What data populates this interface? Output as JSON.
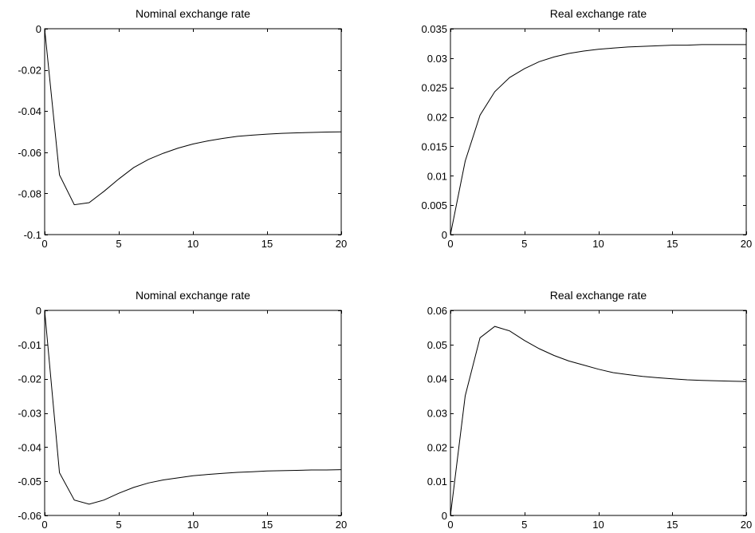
{
  "chart_data": [
    {
      "type": "line",
      "title": "Nominal exchange rate",
      "xlabel": "",
      "ylabel": "",
      "xlim": [
        0,
        20
      ],
      "ylim": [
        -0.1,
        0
      ],
      "grid": false,
      "xticks": [
        0,
        5,
        10,
        15,
        20
      ],
      "xtick_labels": [
        "0",
        "5",
        "10",
        "15",
        "20"
      ],
      "yticks": [
        -0.1,
        -0.08,
        -0.06,
        -0.04,
        -0.02,
        0
      ],
      "ytick_labels": [
        "-0.1",
        "-0.08",
        "-0.06",
        "-0.04",
        "-0.02",
        "0"
      ],
      "series": [
        {
          "x": [
            0,
            1,
            2,
            3,
            4,
            5,
            6,
            7,
            8,
            9,
            10,
            11,
            12,
            13,
            14,
            15,
            16,
            17,
            18,
            19,
            20
          ],
          "values": [
            0,
            -0.071,
            -0.0855,
            -0.0845,
            -0.079,
            -0.073,
            -0.0675,
            -0.0635,
            -0.0605,
            -0.058,
            -0.056,
            -0.0545,
            -0.0533,
            -0.0523,
            -0.0517,
            -0.0512,
            -0.0508,
            -0.0506,
            -0.0504,
            -0.0502,
            -0.0501
          ]
        }
      ]
    },
    {
      "type": "line",
      "title": "Real exchange rate",
      "xlabel": "",
      "ylabel": "",
      "xlim": [
        0,
        20
      ],
      "ylim": [
        0,
        0.035
      ],
      "grid": false,
      "xticks": [
        0,
        5,
        10,
        15,
        20
      ],
      "xtick_labels": [
        "0",
        "5",
        "10",
        "15",
        "20"
      ],
      "yticks": [
        0,
        0.005,
        0.01,
        0.015,
        0.02,
        0.025,
        0.03,
        0.035
      ],
      "ytick_labels": [
        "0",
        "0.005",
        "0.01",
        "0.015",
        "0.02",
        "0.025",
        "0.03",
        "0.035"
      ],
      "series": [
        {
          "x": [
            0,
            1,
            2,
            3,
            4,
            5,
            6,
            7,
            8,
            9,
            10,
            11,
            12,
            13,
            14,
            15,
            16,
            17,
            18,
            19,
            20
          ],
          "values": [
            0,
            0.0125,
            0.0203,
            0.0243,
            0.0267,
            0.0282,
            0.0294,
            0.0302,
            0.0308,
            0.0312,
            0.0315,
            0.0317,
            0.0319,
            0.032,
            0.0321,
            0.0322,
            0.0322,
            0.0323,
            0.0323,
            0.0323,
            0.0323
          ]
        }
      ]
    },
    {
      "type": "line",
      "title": "Nominal exchange rate",
      "xlabel": "",
      "ylabel": "",
      "xlim": [
        0,
        20
      ],
      "ylim": [
        -0.06,
        0
      ],
      "grid": false,
      "xticks": [
        0,
        5,
        10,
        15,
        20
      ],
      "xtick_labels": [
        "0",
        "5",
        "10",
        "15",
        "20"
      ],
      "yticks": [
        -0.06,
        -0.05,
        -0.04,
        -0.03,
        -0.02,
        -0.01,
        0
      ],
      "ytick_labels": [
        "-0.06",
        "-0.05",
        "-0.04",
        "-0.03",
        "-0.02",
        "-0.01",
        "0"
      ],
      "series": [
        {
          "x": [
            0,
            1,
            2,
            3,
            4,
            5,
            6,
            7,
            8,
            9,
            10,
            11,
            12,
            13,
            14,
            15,
            16,
            17,
            18,
            19,
            20
          ],
          "values": [
            0,
            -0.0475,
            -0.0555,
            -0.0567,
            -0.0555,
            -0.0535,
            -0.0518,
            -0.0505,
            -0.0496,
            -0.049,
            -0.0484,
            -0.048,
            -0.0477,
            -0.0474,
            -0.0472,
            -0.047,
            -0.0469,
            -0.0468,
            -0.0467,
            -0.0467,
            -0.0466
          ]
        }
      ]
    },
    {
      "type": "line",
      "title": "Real exchange rate",
      "xlabel": "",
      "ylabel": "",
      "xlim": [
        0,
        20
      ],
      "ylim": [
        0,
        0.06
      ],
      "grid": false,
      "xticks": [
        0,
        5,
        10,
        15,
        20
      ],
      "xtick_labels": [
        "0",
        "5",
        "10",
        "15",
        "20"
      ],
      "yticks": [
        0,
        0.01,
        0.02,
        0.03,
        0.04,
        0.05,
        0.06
      ],
      "ytick_labels": [
        "0",
        "0.01",
        "0.02",
        "0.03",
        "0.04",
        "0.05",
        "0.06"
      ],
      "series": [
        {
          "x": [
            0,
            1,
            2,
            3,
            4,
            5,
            6,
            7,
            8,
            9,
            10,
            11,
            12,
            13,
            14,
            15,
            16,
            17,
            18,
            19,
            20
          ],
          "values": [
            0,
            0.035,
            0.052,
            0.0553,
            0.054,
            0.0512,
            0.0488,
            0.0468,
            0.0452,
            0.044,
            0.0428,
            0.0418,
            0.0412,
            0.0407,
            0.0403,
            0.04,
            0.0397,
            0.0395,
            0.0394,
            0.0393,
            0.0392
          ]
        }
      ]
    }
  ]
}
